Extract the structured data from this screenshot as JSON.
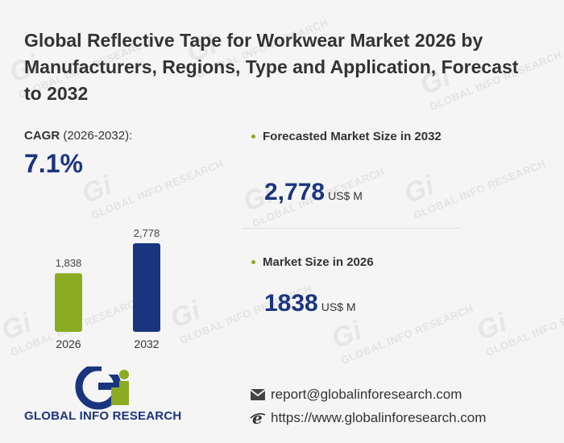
{
  "title": "Global Reflective Tape for Workwear Market 2026 by Manufacturers, Regions, Type and Application, Forecast to 2032",
  "cagr": {
    "label_bold": "CAGR",
    "label_rest": " (2026-2032):",
    "value": "7.1%"
  },
  "forecast": {
    "label": "Forecasted Market Size in 2032",
    "value": "2,778",
    "unit": "US$ M"
  },
  "current": {
    "label": "Market Size in 2026",
    "value": "1838",
    "unit": "US$ M"
  },
  "chart_data": {
    "type": "bar",
    "categories": [
      "2026",
      "2032"
    ],
    "values": [
      1838,
      2778
    ],
    "value_labels": [
      "1,838",
      "2,778"
    ],
    "colors": [
      "#8aac22",
      "#1a3580"
    ],
    "title": "",
    "xlabel": "",
    "ylabel": ""
  },
  "logo": {
    "text": "GLOBAL INFO RESEARCH"
  },
  "contact": {
    "email": "report@globalinforesearch.com",
    "website": "https://www.globalinforesearch.com"
  },
  "watermark": {
    "text": "GLOBAL INFO RESEARCH"
  },
  "colors": {
    "accent_blue": "#1a3580",
    "accent_green": "#8aac22"
  }
}
